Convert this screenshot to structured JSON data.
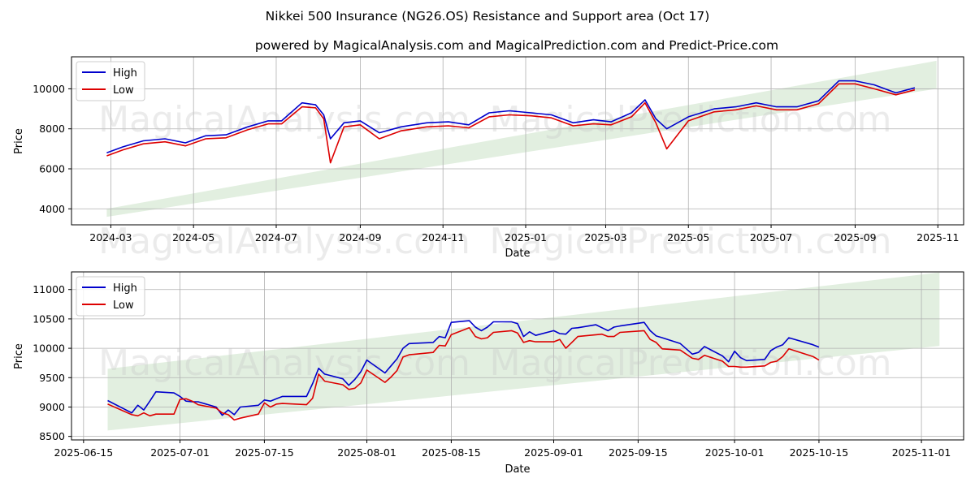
{
  "header": {
    "title": "Nikkei 500 Insurance (NG26.OS) Resistance and Support area (Oct 17)",
    "subtitle": "powered by MagicalAnalysis.com and MagicalPrediction.com and Predict-Price.com"
  },
  "watermarks": [
    "MagicalAnalysis.com",
    "MagicalPrediction.com"
  ],
  "colors": {
    "high": "#0000cc",
    "low": "#dd0000",
    "band": "#d8ead6"
  },
  "chart_data": [
    {
      "type": "line",
      "xlabel": "Date",
      "ylabel": "Price",
      "xlim": [
        "2024-02-01",
        "2025-11-20"
      ],
      "ylim": [
        3200,
        11600
      ],
      "x_ticks": [
        "2024-03",
        "2024-05",
        "2024-07",
        "2024-09",
        "2024-11",
        "2025-01",
        "2025-03",
        "2025-05",
        "2025-07",
        "2025-09",
        "2025-11"
      ],
      "y_ticks": [
        "4000",
        "6000",
        "8000",
        "10000"
      ],
      "legend": [
        "High",
        "Low"
      ],
      "legend_position": "top-left",
      "band": {
        "start": "2024-02-27",
        "end": "2025-10-31",
        "upper": [
          4000,
          11400
        ],
        "lower": [
          3600,
          10000
        ]
      },
      "series": [
        {
          "name": "High",
          "x": [
            "2024-02-27",
            "2024-03-10",
            "2024-03-25",
            "2024-04-10",
            "2024-04-25",
            "2024-05-10",
            "2024-05-25",
            "2024-06-10",
            "2024-06-25",
            "2024-07-05",
            "2024-07-20",
            "2024-07-30",
            "2024-08-05",
            "2024-08-10",
            "2024-08-20",
            "2024-09-01",
            "2024-09-15",
            "2024-10-01",
            "2024-10-20",
            "2024-11-05",
            "2024-11-20",
            "2024-12-05",
            "2024-12-20",
            "2025-01-05",
            "2025-01-20",
            "2025-02-05",
            "2025-02-20",
            "2025-03-05",
            "2025-03-20",
            "2025-03-30",
            "2025-04-07",
            "2025-04-15",
            "2025-05-01",
            "2025-05-20",
            "2025-06-05",
            "2025-06-20",
            "2025-07-05",
            "2025-07-20",
            "2025-08-05",
            "2025-08-20",
            "2025-09-01",
            "2025-09-15",
            "2025-10-01",
            "2025-10-15"
          ],
          "values": [
            6800,
            7100,
            7400,
            7500,
            7300,
            7650,
            7700,
            8100,
            8400,
            8400,
            9300,
            9200,
            8700,
            7500,
            8300,
            8400,
            7800,
            8100,
            8300,
            8350,
            8200,
            8800,
            8900,
            8800,
            8700,
            8300,
            8450,
            8350,
            8800,
            9450,
            8500,
            8000,
            8600,
            9000,
            9100,
            9300,
            9100,
            9100,
            9400,
            10400,
            10400,
            10200,
            9800,
            10050
          ]
        },
        {
          "name": "Low",
          "x": [
            "2024-02-27",
            "2024-03-10",
            "2024-03-25",
            "2024-04-10",
            "2024-04-25",
            "2024-05-10",
            "2024-05-25",
            "2024-06-10",
            "2024-06-25",
            "2024-07-05",
            "2024-07-20",
            "2024-07-30",
            "2024-08-05",
            "2024-08-10",
            "2024-08-20",
            "2024-09-01",
            "2024-09-15",
            "2024-10-01",
            "2024-10-20",
            "2024-11-05",
            "2024-11-20",
            "2024-12-05",
            "2024-12-20",
            "2025-01-05",
            "2025-01-20",
            "2025-02-05",
            "2025-02-20",
            "2025-03-05",
            "2025-03-20",
            "2025-03-30",
            "2025-04-07",
            "2025-04-15",
            "2025-05-01",
            "2025-05-20",
            "2025-06-05",
            "2025-06-20",
            "2025-07-05",
            "2025-07-20",
            "2025-08-05",
            "2025-08-20",
            "2025-09-01",
            "2025-09-15",
            "2025-10-01",
            "2025-10-15"
          ],
          "values": [
            6650,
            6950,
            7250,
            7350,
            7150,
            7500,
            7550,
            7950,
            8250,
            8250,
            9100,
            9050,
            8500,
            6300,
            8100,
            8200,
            7500,
            7900,
            8100,
            8150,
            8050,
            8600,
            8700,
            8650,
            8550,
            8150,
            8250,
            8200,
            8600,
            9300,
            8300,
            7000,
            8400,
            8850,
            8950,
            9150,
            8950,
            8950,
            9250,
            10250,
            10250,
            10000,
            9700,
            9950
          ]
        }
      ]
    },
    {
      "type": "line",
      "xlabel": "Date",
      "ylabel": "Price",
      "xlim": [
        "2025-06-13",
        "2025-11-08"
      ],
      "ylim": [
        8440,
        11300
      ],
      "x_ticks": [
        "2025-06-15",
        "2025-07-01",
        "2025-07-15",
        "2025-08-01",
        "2025-08-15",
        "2025-09-01",
        "2025-09-15",
        "2025-10-01",
        "2025-10-15",
        "2025-11-01"
      ],
      "y_ticks": [
        "8500",
        "9000",
        "9500",
        "10000",
        "10500",
        "11000"
      ],
      "legend": [
        "High",
        "Low"
      ],
      "legend_position": "top-left",
      "band": {
        "start": "2025-06-19",
        "end": "2025-11-04",
        "upper": [
          9650,
          11290
        ],
        "lower": [
          8600,
          10040
        ]
      },
      "series": [
        {
          "name": "High",
          "x": [
            "2025-06-19",
            "2025-06-23",
            "2025-06-24",
            "2025-06-25",
            "2025-06-26",
            "2025-06-27",
            "2025-06-30",
            "2025-07-01",
            "2025-07-02",
            "2025-07-03",
            "2025-07-04",
            "2025-07-07",
            "2025-07-08",
            "2025-07-09",
            "2025-07-10",
            "2025-07-11",
            "2025-07-14",
            "2025-07-15",
            "2025-07-16",
            "2025-07-17",
            "2025-07-18",
            "2025-07-22",
            "2025-07-23",
            "2025-07-24",
            "2025-07-25",
            "2025-07-28",
            "2025-07-29",
            "2025-07-30",
            "2025-07-31",
            "2025-08-01",
            "2025-08-04",
            "2025-08-05",
            "2025-08-06",
            "2025-08-07",
            "2025-08-08",
            "2025-08-12",
            "2025-08-13",
            "2025-08-14",
            "2025-08-15",
            "2025-08-18",
            "2025-08-19",
            "2025-08-20",
            "2025-08-21",
            "2025-08-22",
            "2025-08-25",
            "2025-08-26",
            "2025-08-27",
            "2025-08-28",
            "2025-08-29",
            "2025-09-01",
            "2025-09-02",
            "2025-09-03",
            "2025-09-04",
            "2025-09-05",
            "2025-09-08",
            "2025-09-09",
            "2025-09-10",
            "2025-09-11",
            "2025-09-12",
            "2025-09-16",
            "2025-09-17",
            "2025-09-18",
            "2025-09-19",
            "2025-09-22",
            "2025-09-24",
            "2025-09-25",
            "2025-09-26",
            "2025-09-29",
            "2025-09-30",
            "2025-10-01",
            "2025-10-02",
            "2025-10-03",
            "2025-10-06",
            "2025-10-07",
            "2025-10-08",
            "2025-10-09",
            "2025-10-10",
            "2025-10-14",
            "2025-10-15"
          ],
          "values": [
            9110,
            8900,
            9030,
            8950,
            9100,
            9260,
            9240,
            9180,
            9100,
            9090,
            9090,
            9000,
            8860,
            8950,
            8870,
            9000,
            9030,
            9120,
            9100,
            9140,
            9180,
            9180,
            9400,
            9660,
            9560,
            9480,
            9370,
            9470,
            9600,
            9800,
            9580,
            9700,
            9820,
            10000,
            10080,
            10100,
            10200,
            10180,
            10440,
            10470,
            10360,
            10300,
            10360,
            10450,
            10450,
            10420,
            10200,
            10280,
            10220,
            10300,
            10250,
            10240,
            10340,
            10350,
            10400,
            10350,
            10300,
            10360,
            10380,
            10440,
            10300,
            10210,
            10180,
            10080,
            9900,
            9930,
            10030,
            9870,
            9770,
            9950,
            9840,
            9790,
            9810,
            9960,
            10020,
            10060,
            10180,
            10060,
            10020
          ]
        },
        {
          "name": "Low",
          "x": [
            "2025-06-19",
            "2025-06-23",
            "2025-06-24",
            "2025-06-25",
            "2025-06-26",
            "2025-06-27",
            "2025-06-30",
            "2025-07-01",
            "2025-07-02",
            "2025-07-03",
            "2025-07-04",
            "2025-07-07",
            "2025-07-08",
            "2025-07-09",
            "2025-07-10",
            "2025-07-11",
            "2025-07-14",
            "2025-07-15",
            "2025-07-16",
            "2025-07-17",
            "2025-07-18",
            "2025-07-22",
            "2025-07-23",
            "2025-07-24",
            "2025-07-25",
            "2025-07-28",
            "2025-07-29",
            "2025-07-30",
            "2025-07-31",
            "2025-08-01",
            "2025-08-04",
            "2025-08-05",
            "2025-08-06",
            "2025-08-07",
            "2025-08-08",
            "2025-08-12",
            "2025-08-13",
            "2025-08-14",
            "2025-08-15",
            "2025-08-18",
            "2025-08-19",
            "2025-08-20",
            "2025-08-21",
            "2025-08-22",
            "2025-08-25",
            "2025-08-26",
            "2025-08-27",
            "2025-08-28",
            "2025-08-29",
            "2025-09-01",
            "2025-09-02",
            "2025-09-03",
            "2025-09-04",
            "2025-09-05",
            "2025-09-08",
            "2025-09-09",
            "2025-09-10",
            "2025-09-11",
            "2025-09-12",
            "2025-09-16",
            "2025-09-17",
            "2025-09-18",
            "2025-09-19",
            "2025-09-22",
            "2025-09-24",
            "2025-09-25",
            "2025-09-26",
            "2025-09-29",
            "2025-09-30",
            "2025-10-01",
            "2025-10-02",
            "2025-10-03",
            "2025-10-06",
            "2025-10-07",
            "2025-10-08",
            "2025-10-09",
            "2025-10-10",
            "2025-10-14",
            "2025-10-15"
          ],
          "values": [
            9050,
            8870,
            8850,
            8900,
            8850,
            8880,
            8880,
            9130,
            9140,
            9100,
            9040,
            8980,
            8900,
            8870,
            8780,
            8810,
            8880,
            9070,
            9000,
            9050,
            9060,
            9040,
            9150,
            9560,
            9440,
            9380,
            9300,
            9320,
            9410,
            9630,
            9420,
            9510,
            9620,
            9850,
            9890,
            9930,
            10050,
            10040,
            10230,
            10350,
            10200,
            10160,
            10180,
            10270,
            10300,
            10260,
            10100,
            10130,
            10110,
            10110,
            10150,
            10000,
            10100,
            10200,
            10230,
            10240,
            10200,
            10200,
            10270,
            10300,
            10150,
            10100,
            9990,
            9970,
            9830,
            9810,
            9880,
            9780,
            9690,
            9690,
            9680,
            9680,
            9700,
            9760,
            9780,
            9860,
            9990,
            9860,
            9800
          ]
        }
      ]
    }
  ]
}
